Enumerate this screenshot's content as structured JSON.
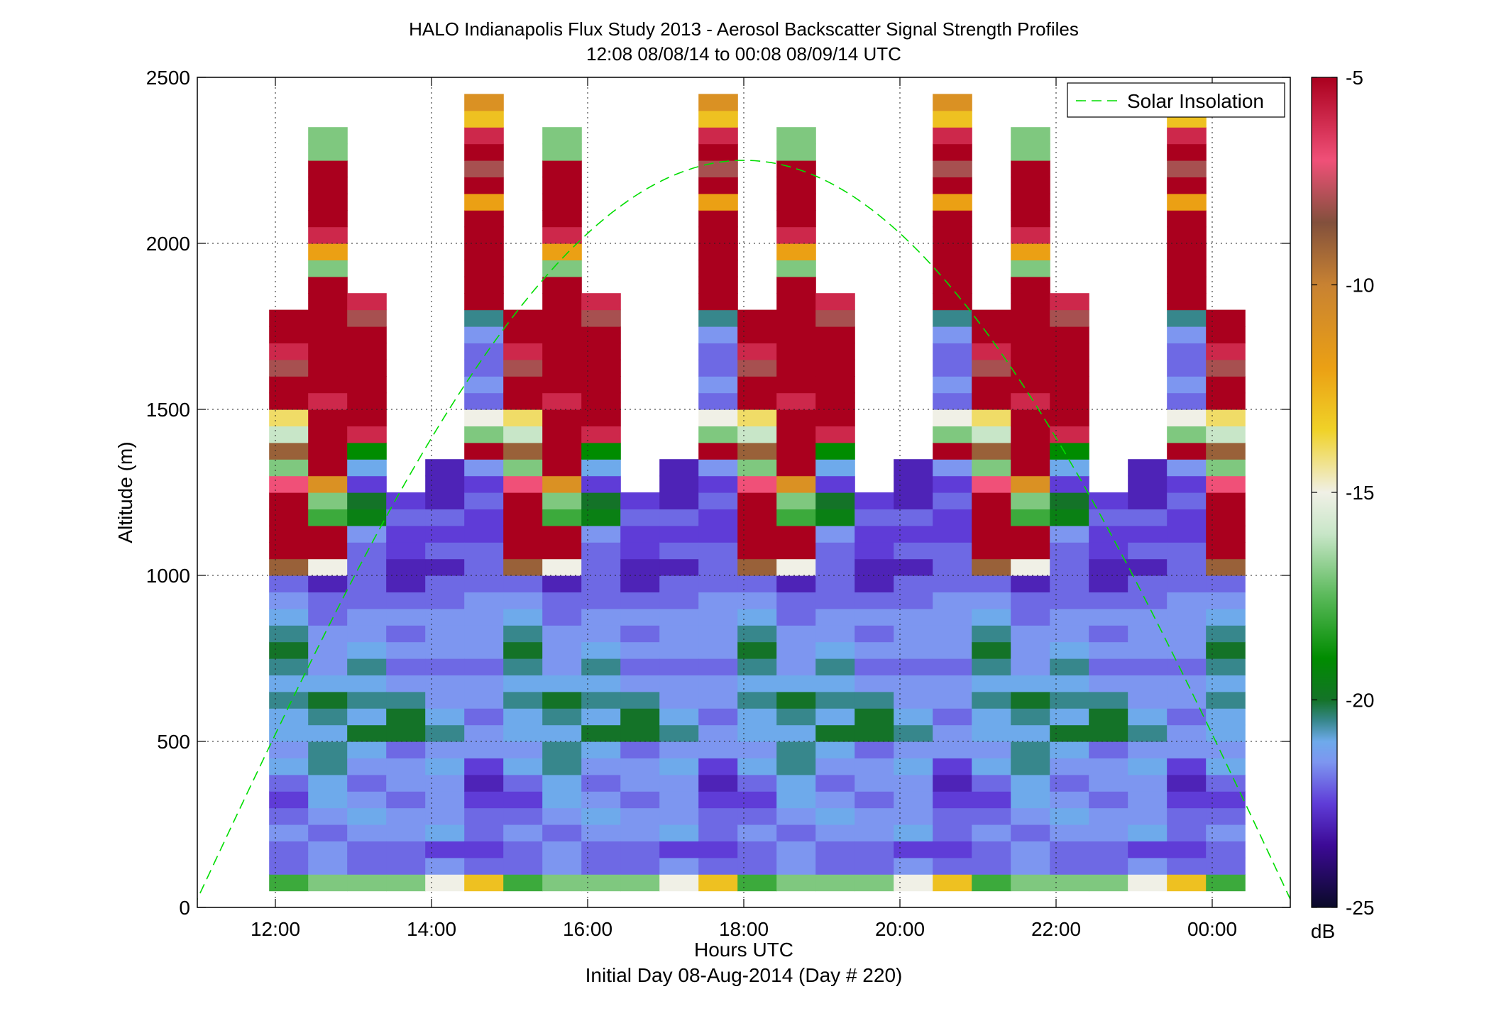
{
  "chart_data": {
    "type": "heatmap",
    "title": "HALO Indianapolis Flux Study 2013 - Aerosol Backscatter Signal Strength Profiles",
    "subtitle": "12:08 08/08/14 to 00:08 08/09/14  UTC",
    "xlabel": "Hours UTC",
    "xlabel2": "Initial Day 08-Aug-2014 (Day # 220)",
    "ylabel": "Altitude (m)",
    "x_ticks": [
      "12:00",
      "14:00",
      "16:00",
      "18:00",
      "20:00",
      "22:00",
      "00:00"
    ],
    "y_ticks": [
      "0",
      "500",
      "1000",
      "1500",
      "2000",
      "2500"
    ],
    "xlim_hours": [
      11,
      25
    ],
    "ylim": [
      0,
      2500
    ],
    "grid": true,
    "legend": {
      "position": "top-right",
      "entries": [
        "Solar Insolation"
      ]
    },
    "colorbar": {
      "label": "dB",
      "ticks": [
        "-5",
        "-10",
        "-15",
        "-20",
        "-25"
      ],
      "range": [
        -25,
        -5
      ]
    },
    "columns_hours": [
      12.17,
      12.67,
      13.17,
      13.67,
      14.17,
      14.67,
      15.17,
      15.67,
      16.17,
      16.67,
      17.17,
      17.67,
      18.17,
      18.67,
      19.17,
      19.67,
      20.17,
      20.67,
      21.17,
      21.67,
      22.17,
      22.67,
      23.17,
      23.67,
      24.17
    ],
    "solar_insolation": {
      "name": "Solar Insolation",
      "peak_hour": 18.0,
      "peak_altitude": 2250,
      "zero_hours": [
        10.95,
        25.05
      ],
      "color": "#00dd00"
    },
    "profiles_db": [
      [
        -18,
        -22,
        -22,
        -21.5,
        -22,
        -22.5,
        -22,
        -21,
        -21.5,
        -21,
        -21,
        -20.5,
        -21,
        -20.5,
        -20,
        -20.5,
        -21,
        -21.5,
        -22,
        -9,
        -5,
        -5,
        -5,
        -5,
        -7,
        -17,
        -9,
        -16,
        -14,
        -5,
        -5,
        -8,
        -6,
        -5,
        -5
      ],
      [
        -17,
        -21.5,
        -21.5,
        -22,
        -21.5,
        -21,
        -21,
        -20.5,
        -20.5,
        -21,
        -20.5,
        -20,
        -21,
        -21.5,
        -21.5,
        -21.5,
        -22,
        -22,
        -23,
        -15,
        -5,
        -5,
        -18,
        -17,
        -11,
        -5,
        -5,
        -5,
        -5,
        -6,
        -5,
        -5,
        -5,
        -5,
        -5,
        -5,
        -5,
        -17,
        -12,
        -6,
        -5,
        -5,
        -5,
        -5,
        -17,
        -17
      ],
      [
        -17,
        -22,
        -22,
        -21.5,
        -21,
        -21.5,
        -22,
        -21.5,
        -21,
        -20,
        -21,
        -20.5,
        -21,
        -20.5,
        -21,
        -21.5,
        -21.5,
        -22,
        -22,
        -22,
        -22,
        -21.5,
        -19.5,
        -20,
        -22.5,
        -21,
        -19,
        -6,
        -5,
        -5,
        -5,
        -5,
        -5,
        -5,
        -8,
        -6
      ],
      [
        -17,
        -22,
        -22,
        -21.5,
        -21.5,
        -22,
        -21.5,
        -21.5,
        -22,
        -20,
        -20,
        -20.5,
        -21.5,
        -22,
        -21.5,
        -22,
        -21.5,
        -22,
        -23,
        -23,
        -22.5,
        -22.5,
        -22,
        -22.5
      ],
      [
        -15,
        -21.5,
        -22.5,
        -21,
        -21.5,
        -21.5,
        -21.5,
        -21,
        -21.5,
        -20.5,
        -21,
        -21.5,
        -21.5,
        -22,
        -21.5,
        -21.5,
        -21.5,
        -22,
        -22,
        -23,
        -22,
        -22.5,
        -22,
        -23,
        -23,
        -23
      ],
      [
        -13,
        -22,
        -22.5,
        -22,
        -22,
        -22.5,
        -23,
        -22.5,
        -21.5,
        -21.5,
        -22,
        -21.5,
        -21.5,
        -22,
        -21.5,
        -21.5,
        -21.5,
        -21.5,
        -22,
        -22,
        -22,
        -22.5,
        -22.5,
        -22,
        -22.5,
        -21.5,
        -5,
        -17,
        -15,
        -22,
        -21.5,
        -22,
        -22,
        -21.5,
        -20.5,
        -5,
        -5,
        -5,
        -5,
        -5,
        -5,
        -12,
        -5,
        -8,
        -5,
        -6,
        -13,
        -11
      ]
    ]
  }
}
